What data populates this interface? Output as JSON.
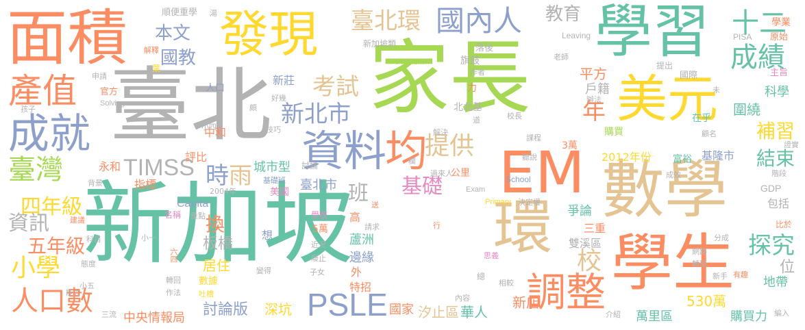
{
  "palette": {
    "green": "#66c2a5",
    "orange": "#fc8d62",
    "blue": "#8da0cb",
    "pink": "#e78ac3",
    "lime": "#a6d854",
    "yellow": "#ffd92f",
    "tan": "#e5c494",
    "gray": "#b3b3b3"
  },
  "words": [
    {
      "text": "新加坡",
      "color": "green"
    },
    {
      "text": "家長",
      "color": "lime"
    },
    {
      "text": "臺北",
      "color": "gray"
    },
    {
      "text": "面積",
      "color": "orange"
    },
    {
      "text": "發現",
      "color": "yellow"
    },
    {
      "text": "學習",
      "color": "green"
    },
    {
      "text": "美元",
      "color": "yellow"
    },
    {
      "text": "數學",
      "color": "tan"
    },
    {
      "text": "學生",
      "color": "orange"
    },
    {
      "text": "環",
      "color": "tan"
    },
    {
      "text": "EM",
      "color": "orange"
    },
    {
      "text": "資料",
      "color": "blue"
    },
    {
      "text": "均",
      "color": "orange"
    },
    {
      "text": "成就",
      "color": "blue"
    },
    {
      "text": "產值",
      "color": "orange"
    },
    {
      "text": "國內人",
      "color": "blue"
    },
    {
      "text": "臺北環",
      "color": "tan"
    },
    {
      "text": "教育",
      "color": "gray"
    },
    {
      "text": "十二",
      "color": "green"
    },
    {
      "text": "成績",
      "color": "green"
    },
    {
      "text": "本文",
      "color": "blue"
    },
    {
      "text": "國教",
      "color": "blue"
    },
    {
      "text": "新北市",
      "color": "blue"
    },
    {
      "text": "考試",
      "color": "tan"
    },
    {
      "text": "提供",
      "color": "tan"
    },
    {
      "text": "臺灣",
      "color": "lime"
    },
    {
      "text": "TIMSS",
      "color": "gray"
    },
    {
      "text": "調整",
      "color": "orange"
    },
    {
      "text": "PSLE",
      "color": "blue"
    },
    {
      "text": "人口數",
      "color": "orange"
    },
    {
      "text": "小學",
      "color": "yellow"
    },
    {
      "text": "四年級",
      "color": "yellow"
    },
    {
      "text": "資訊",
      "color": "gray"
    },
    {
      "text": "五年級",
      "color": "orange"
    },
    {
      "text": "時",
      "color": "blue"
    },
    {
      "text": "雨",
      "color": "tan"
    },
    {
      "text": "基礎",
      "color": "pink"
    },
    {
      "text": "換",
      "color": "orange"
    },
    {
      "text": "年",
      "color": "orange"
    },
    {
      "text": "探究",
      "color": "green"
    },
    {
      "text": "結束",
      "color": "green"
    },
    {
      "text": "補習",
      "color": "yellow"
    },
    {
      "text": "平方",
      "color": "orange"
    },
    {
      "text": "戶籍",
      "color": "gray"
    },
    {
      "text": "科學",
      "color": "green"
    },
    {
      "text": "圍繞",
      "color": "green"
    },
    {
      "text": "城市型",
      "color": "green"
    },
    {
      "text": "討論",
      "color": "gray"
    },
    {
      "text": "班",
      "color": "gray"
    },
    {
      "text": "校",
      "color": "tan"
    },
    {
      "text": "位",
      "color": "gray"
    },
    {
      "text": "新店",
      "color": "orange"
    },
    {
      "text": "530萬",
      "color": "yellow"
    },
    {
      "text": "萬里區",
      "color": "green"
    },
    {
      "text": "購買力",
      "color": "green"
    },
    {
      "text": "汐止區",
      "color": "tan"
    },
    {
      "text": "華人",
      "color": "green"
    },
    {
      "text": "國家",
      "color": "orange"
    },
    {
      "text": "討論版",
      "color": "blue"
    },
    {
      "text": "深坑",
      "color": "yellow"
    },
    {
      "text": "中央情報局",
      "color": "orange"
    },
    {
      "text": "板橋",
      "color": "gray"
    },
    {
      "text": "居住",
      "color": "yellow"
    },
    {
      "text": "Capita",
      "color": "blue"
    },
    {
      "text": "美國",
      "color": "pink"
    },
    {
      "text": "臺北市",
      "color": "blue"
    },
    {
      "text": "蘆洲",
      "color": "green"
    },
    {
      "text": "邊緣",
      "color": "blue"
    },
    {
      "text": "特招",
      "color": "orange"
    },
    {
      "text": "雙溪區",
      "color": "gray"
    },
    {
      "text": "三重",
      "color": "orange"
    },
    {
      "text": "爭論",
      "color": "green"
    },
    {
      "text": "2012年份",
      "color": "yellow"
    },
    {
      "text": "富裕",
      "color": "green"
    },
    {
      "text": "基隆市",
      "color": "blue"
    },
    {
      "text": "GDP",
      "color": "gray"
    },
    {
      "text": "包括",
      "color": "gray"
    },
    {
      "text": "中和",
      "color": "orange"
    },
    {
      "text": "新莊",
      "color": "blue"
    },
    {
      "text": "人口",
      "color": "blue"
    },
    {
      "text": "永和",
      "color": "orange"
    },
    {
      "text": "評比",
      "color": "orange"
    },
    {
      "text": "指標",
      "color": "orange"
    },
    {
      "text": "北北基",
      "color": "gray"
    },
    {
      "text": "購買",
      "color": "lime"
    },
    {
      "text": "3萬",
      "color": "orange"
    },
    {
      "text": "在乎",
      "color": "green"
    },
    {
      "text": "公里",
      "color": "orange"
    },
    {
      "text": "旗鼓",
      "color": "gray"
    },
    {
      "text": "落後",
      "color": "gray"
    },
    {
      "text": "新加坡類",
      "color": "gray"
    },
    {
      "text": "順便重學",
      "color": "gray"
    },
    {
      "text": "學業",
      "color": "orange"
    },
    {
      "text": "原始",
      "color": "orange"
    },
    {
      "text": "PISA",
      "color": "gray"
    },
    {
      "text": "Leaving",
      "color": "gray"
    },
    {
      "text": "主旨",
      "color": "pink"
    },
    {
      "text": "國際",
      "color": "gray"
    },
    {
      "text": "提出",
      "color": "gray"
    },
    {
      "text": "老師",
      "color": "gray"
    },
    {
      "text": "作者",
      "color": "gray"
    },
    {
      "text": "Problem",
      "color": "lime"
    },
    {
      "text": "力",
      "color": "orange"
    },
    {
      "text": "官方",
      "color": "orange"
    },
    {
      "text": "Solving",
      "color": "gray"
    },
    {
      "text": "申請",
      "color": "gray"
    },
    {
      "text": "孩子",
      "color": "gray"
    },
    {
      "text": "解釋",
      "color": "orange"
    },
    {
      "text": "葉",
      "color": "yellow"
    },
    {
      "text": "湯",
      "color": "gray"
    },
    {
      "text": "好幾",
      "color": "gray"
    },
    {
      "text": "小四",
      "color": "gray"
    },
    {
      "text": "技巧",
      "color": "gray"
    },
    {
      "text": "頗",
      "color": "gray"
    },
    {
      "text": "解決",
      "color": "gray"
    },
    {
      "text": "校長",
      "color": "gray"
    },
    {
      "text": "課程",
      "color": "gray"
    },
    {
      "text": "聽說",
      "color": "gray"
    },
    {
      "text": "顧名",
      "color": "gray"
    },
    {
      "text": "證實",
      "color": "gray"
    },
    {
      "text": "基礎班",
      "color": "blue"
    },
    {
      "text": "2004年",
      "color": "gray"
    },
    {
      "text": "過來人",
      "color": "gray"
    },
    {
      "text": "School",
      "color": "blue"
    },
    {
      "text": "Exam",
      "color": "gray"
    },
    {
      "text": "Primary",
      "color": "yellow"
    },
    {
      "text": "決定權",
      "color": "gray"
    },
    {
      "text": "成效",
      "color": "gray"
    },
    {
      "text": "學校",
      "color": "pink"
    },
    {
      "text": "5萬",
      "color": "orange"
    },
    {
      "text": "高",
      "color": "orange"
    },
    {
      "text": "請求",
      "color": "gray"
    },
    {
      "text": "近況",
      "color": "gray"
    },
    {
      "text": "廢止",
      "color": "gray"
    },
    {
      "text": "子女",
      "color": "gray"
    },
    {
      "text": "外",
      "color": "orange"
    },
    {
      "text": "總",
      "color": "gray"
    },
    {
      "text": "相較",
      "color": "gray"
    },
    {
      "text": "內容",
      "color": "gray"
    },
    {
      "text": "介紹",
      "color": "gray"
    },
    {
      "text": "思義",
      "color": "pink"
    },
    {
      "text": "網路",
      "color": "gray"
    },
    {
      "text": "轉班",
      "color": "gray"
    },
    {
      "text": "新手",
      "color": "gray"
    },
    {
      "text": "有趣",
      "color": "orange"
    },
    {
      "text": "地帶",
      "color": "green"
    },
    {
      "text": "編入",
      "color": "gray"
    },
    {
      "text": "比於",
      "color": "orange"
    },
    {
      "text": "階段",
      "color": "gray"
    },
    {
      "text": "分成",
      "color": "gray"
    },
    {
      "text": "名稱",
      "color": "pink"
    },
    {
      "text": "重點",
      "color": "gray"
    },
    {
      "text": "科目",
      "color": "gray"
    },
    {
      "text": "小一",
      "color": "gray"
    },
    {
      "text": "六四",
      "color": "orange"
    },
    {
      "text": "轉回",
      "color": "gray"
    },
    {
      "text": "作法",
      "color": "gray"
    },
    {
      "text": "數據",
      "color": "yellow"
    },
    {
      "text": "吐槽",
      "color": "yellow"
    },
    {
      "text": "態度",
      "color": "gray"
    },
    {
      "text": "小五",
      "color": "gray"
    },
    {
      "text": "能力",
      "color": "gray"
    },
    {
      "text": "三流",
      "color": "gray"
    },
    {
      "text": "背景",
      "color": "gray"
    },
    {
      "text": "建議",
      "color": "orange"
    },
    {
      "text": "想",
      "color": "blue"
    },
    {
      "text": "變得",
      "color": "gray"
    },
    {
      "text": "送",
      "color": "orange"
    },
    {
      "text": "行",
      "color": "orange"
    },
    {
      "text": "欄",
      "color": "gray"
    },
    {
      "text": "道",
      "color": "gray"
    },
    {
      "text": "辦法",
      "color": "gray"
    },
    {
      "text": "未",
      "color": "gray"
    }
  ]
}
